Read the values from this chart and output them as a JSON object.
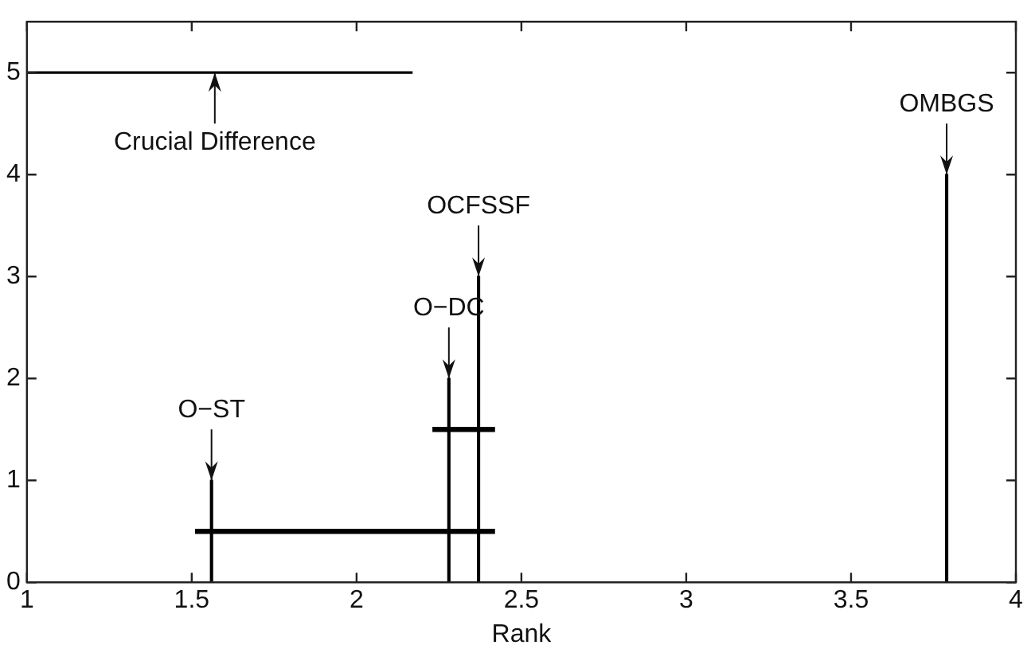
{
  "chart_data": {
    "type": "bar",
    "xlabel": "Rank",
    "xlim": [
      1,
      4
    ],
    "xticks": [
      1,
      1.5,
      2,
      2.5,
      3,
      3.5,
      4
    ],
    "ylim": [
      0,
      5.5
    ],
    "yticks": [
      0,
      1,
      2,
      3,
      4,
      5
    ],
    "grid": false,
    "legend": false,
    "marker": "none",
    "series": [
      {
        "color": "#000000",
        "x": [
          1.56,
          2.28,
          2.37,
          3.79
        ],
        "values": [
          1,
          2,
          3,
          4
        ]
      },
      {
        "type": "line",
        "color": "#000000",
        "x": [
          1,
          2.17
        ],
        "values": [
          5,
          5
        ]
      },
      {
        "type": "line",
        "color": "#000000",
        "x": [
          1.51,
          2.42
        ],
        "values": [
          0.5,
          0.5
        ]
      },
      {
        "type": "line",
        "color": "#000000",
        "x": [
          2.23,
          2.42
        ],
        "values": [
          1.5,
          1.5
        ]
      }
    ],
    "annotations": [
      {
        "text": "Crucial Difference",
        "x": 1.57,
        "y": 5
      },
      {
        "text": "O−ST",
        "x": 1.56,
        "y": 1
      },
      {
        "text": "O−DC",
        "x": 2.28,
        "y": 2
      },
      {
        "text": "OCFSSF",
        "x": 2.37,
        "y": 3
      },
      {
        "text": "OMBGS",
        "x": 3.79,
        "y": 4
      }
    ]
  }
}
